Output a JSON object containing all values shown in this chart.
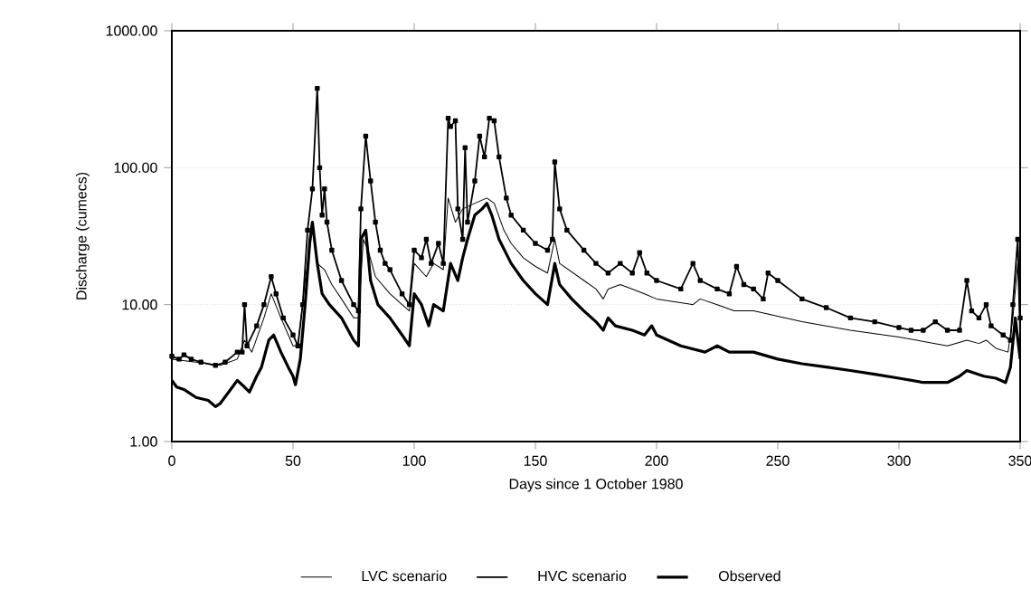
{
  "chart_data": {
    "type": "line",
    "xlabel": "Days since 1 October 1980",
    "ylabel": "Discharge (cumecs)",
    "log": "y",
    "grid": "y",
    "legend": "bottom",
    "xlim": [
      0,
      350
    ],
    "xticks": [
      0,
      50,
      100,
      150,
      200,
      250,
      300,
      350
    ],
    "ylim": [
      1,
      1000
    ],
    "yticks": [
      {
        "value": 1,
        "label": "1.00"
      },
      {
        "value": 10,
        "label": "10.00"
      },
      {
        "value": 100,
        "label": "100.00"
      },
      {
        "value": 1000,
        "label": "1000.00"
      }
    ],
    "series": [
      {
        "name": "LVC scenario",
        "color": "#000000",
        "marker": "none",
        "x": [
          0,
          10,
          20,
          27,
          30,
          33,
          38,
          41,
          45,
          50,
          52,
          55,
          58,
          60,
          63,
          66,
          70,
          75,
          77,
          79,
          81,
          84,
          90,
          95,
          98,
          100,
          105,
          108,
          112,
          114,
          117,
          120,
          125,
          130,
          133,
          137,
          140,
          145,
          150,
          155,
          158,
          160,
          170,
          175,
          178,
          180,
          185,
          190,
          195,
          200,
          215,
          218,
          225,
          232,
          240,
          260,
          280,
          300,
          320,
          328,
          333,
          336,
          340,
          345,
          347,
          349,
          350
        ],
        "values": [
          4.0,
          3.8,
          3.6,
          4.0,
          5.5,
          4.5,
          8,
          12,
          8,
          5,
          5,
          15,
          35,
          20,
          18,
          14,
          11,
          8,
          8,
          30,
          25,
          16,
          12,
          10,
          9,
          20,
          16,
          20,
          18,
          60,
          40,
          50,
          55,
          60,
          55,
          35,
          28,
          22,
          19,
          17,
          30,
          20,
          15,
          13,
          11,
          13,
          14,
          13,
          12,
          11,
          10,
          11,
          10,
          9,
          9,
          7.5,
          6.5,
          5.8,
          5,
          5.5,
          5.2,
          5.5,
          4.8,
          4.5,
          8,
          20,
          5
        ]
      },
      {
        "name": "HVC scenario",
        "color": "#000000",
        "marker": "square",
        "x": [
          0,
          3,
          5,
          8,
          12,
          18,
          22,
          27,
          29,
          30,
          31,
          35,
          38,
          41,
          43,
          46,
          50,
          52,
          54,
          56,
          58,
          60,
          61,
          62,
          63,
          64,
          66,
          70,
          75,
          77,
          78,
          80,
          82,
          84,
          86,
          88,
          90,
          95,
          98,
          100,
          103,
          105,
          107,
          110,
          112,
          114,
          115,
          117,
          118,
          120,
          121,
          122,
          125,
          127,
          129,
          131,
          133,
          135,
          138,
          140,
          145,
          150,
          155,
          157,
          158,
          160,
          163,
          170,
          175,
          180,
          185,
          190,
          193,
          196,
          200,
          210,
          215,
          218,
          225,
          230,
          233,
          236,
          240,
          244,
          246,
          250,
          260,
          270,
          280,
          290,
          300,
          305,
          310,
          315,
          320,
          325,
          328,
          330,
          333,
          336,
          338,
          343,
          346,
          347,
          349,
          350
        ],
        "values": [
          4.2,
          4.0,
          4.3,
          4.0,
          3.8,
          3.6,
          3.8,
          4.5,
          4.5,
          10,
          5,
          7,
          10,
          16,
          12,
          8,
          6,
          5,
          10,
          35,
          70,
          380,
          100,
          45,
          70,
          40,
          25,
          15,
          10,
          9,
          50,
          170,
          80,
          40,
          25,
          20,
          18,
          12,
          10,
          25,
          22,
          30,
          20,
          28,
          20,
          230,
          200,
          220,
          50,
          30,
          140,
          40,
          80,
          170,
          120,
          230,
          220,
          120,
          60,
          45,
          35,
          28,
          25,
          30,
          110,
          50,
          35,
          25,
          20,
          17,
          20,
          17,
          24,
          17,
          15,
          13,
          20,
          15,
          13,
          12,
          19,
          14,
          13,
          11,
          17,
          15,
          11,
          9.5,
          8,
          7.5,
          6.8,
          6.5,
          6.5,
          7.5,
          6.5,
          6.5,
          15,
          9,
          8,
          10,
          7,
          6,
          5.5,
          10,
          30,
          8
        ]
      },
      {
        "name": "Observed",
        "color": "#000000",
        "marker": "none",
        "x": [
          0,
          2,
          5,
          10,
          15,
          18,
          20,
          25,
          27,
          30,
          32,
          35,
          37,
          40,
          42,
          45,
          48,
          50,
          51,
          53,
          55,
          57,
          58,
          60,
          62,
          65,
          70,
          75,
          77,
          78,
          80,
          82,
          85,
          90,
          95,
          98,
          100,
          103,
          106,
          108,
          112,
          115,
          118,
          120,
          122,
          125,
          128,
          130,
          132,
          135,
          140,
          145,
          150,
          155,
          158,
          160,
          165,
          170,
          175,
          178,
          180,
          183,
          190,
          195,
          198,
          200,
          210,
          220,
          225,
          230,
          240,
          250,
          260,
          270,
          280,
          290,
          300,
          310,
          320,
          325,
          328,
          335,
          340,
          344,
          346,
          348,
          350
        ],
        "values": [
          2.8,
          2.5,
          2.4,
          2.1,
          2.0,
          1.8,
          1.9,
          2.5,
          2.8,
          2.5,
          2.3,
          3.0,
          3.5,
          5.5,
          6.0,
          4.5,
          3.5,
          3.0,
          2.6,
          4,
          10,
          30,
          40,
          20,
          12,
          10,
          8,
          5.5,
          5,
          30,
          35,
          15,
          10,
          8,
          6,
          5,
          12,
          10,
          7,
          10,
          9,
          20,
          15,
          22,
          30,
          45,
          50,
          55,
          45,
          30,
          20,
          15,
          12,
          10,
          20,
          14,
          11,
          9,
          7.5,
          6.5,
          8,
          7,
          6.5,
          6,
          7.0,
          6,
          5,
          4.5,
          5,
          4.5,
          4.5,
          4,
          3.7,
          3.5,
          3.3,
          3.1,
          2.9,
          2.7,
          2.7,
          3.0,
          3.3,
          3.0,
          2.9,
          2.7,
          3.5,
          8,
          4
        ]
      }
    ]
  }
}
